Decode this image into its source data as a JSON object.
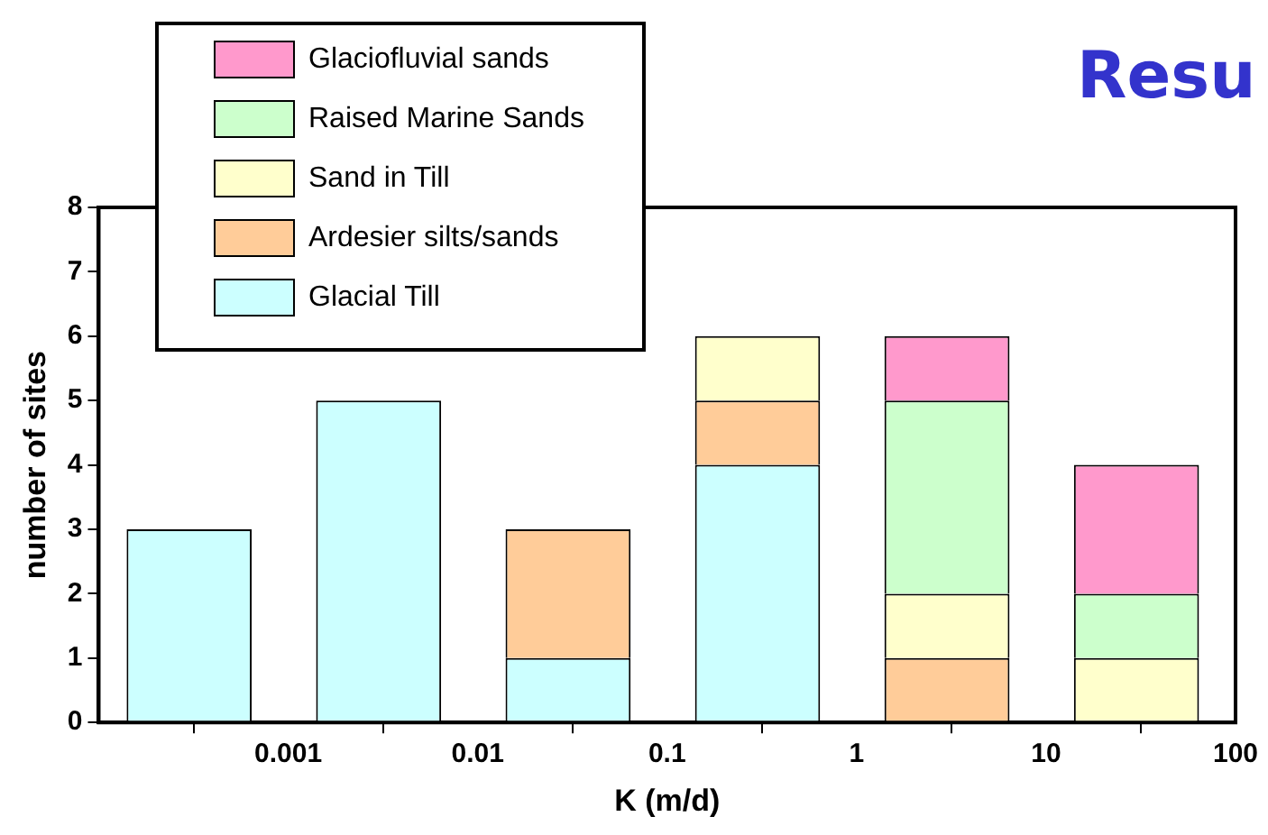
{
  "chart_data": {
    "type": "bar",
    "title": "Resu",
    "xlabel": "K (m/d)",
    "ylabel": "number of sites",
    "stacked": true,
    "log": "x",
    "x": [
      0.0003,
      0.003,
      0.03,
      0.3,
      3,
      30
    ],
    "xlim": [
      0.0001,
      100
    ],
    "xticks": [
      {
        "value": 0.0001,
        "label": null
      },
      0.001,
      0.01,
      0.1,
      1,
      10,
      100
    ],
    "ylim": [
      0,
      8
    ],
    "yticks": [
      0,
      1,
      2,
      3,
      4,
      5,
      6,
      7,
      8
    ],
    "grid": false,
    "legend": "top left",
    "series": [
      {
        "name": "Glacial Till",
        "color": "#ccffff",
        "values": [
          3,
          5,
          1,
          4,
          null,
          null
        ]
      },
      {
        "name": "Ardesier silts/sands",
        "color": "#ffcc99",
        "values": [
          null,
          null,
          2,
          1,
          1,
          null
        ]
      },
      {
        "name": "Sand in Till",
        "color": "#ffffcc",
        "values": [
          null,
          null,
          null,
          1,
          1,
          1
        ]
      },
      {
        "name": "Raised Marine Sands",
        "color": "#ccffcc",
        "values": [
          null,
          null,
          null,
          null,
          3,
          1
        ]
      },
      {
        "name": "Glaciofluvial sands",
        "color": "#ff99cc",
        "values": [
          null,
          null,
          null,
          null,
          1,
          2
        ]
      }
    ]
  }
}
